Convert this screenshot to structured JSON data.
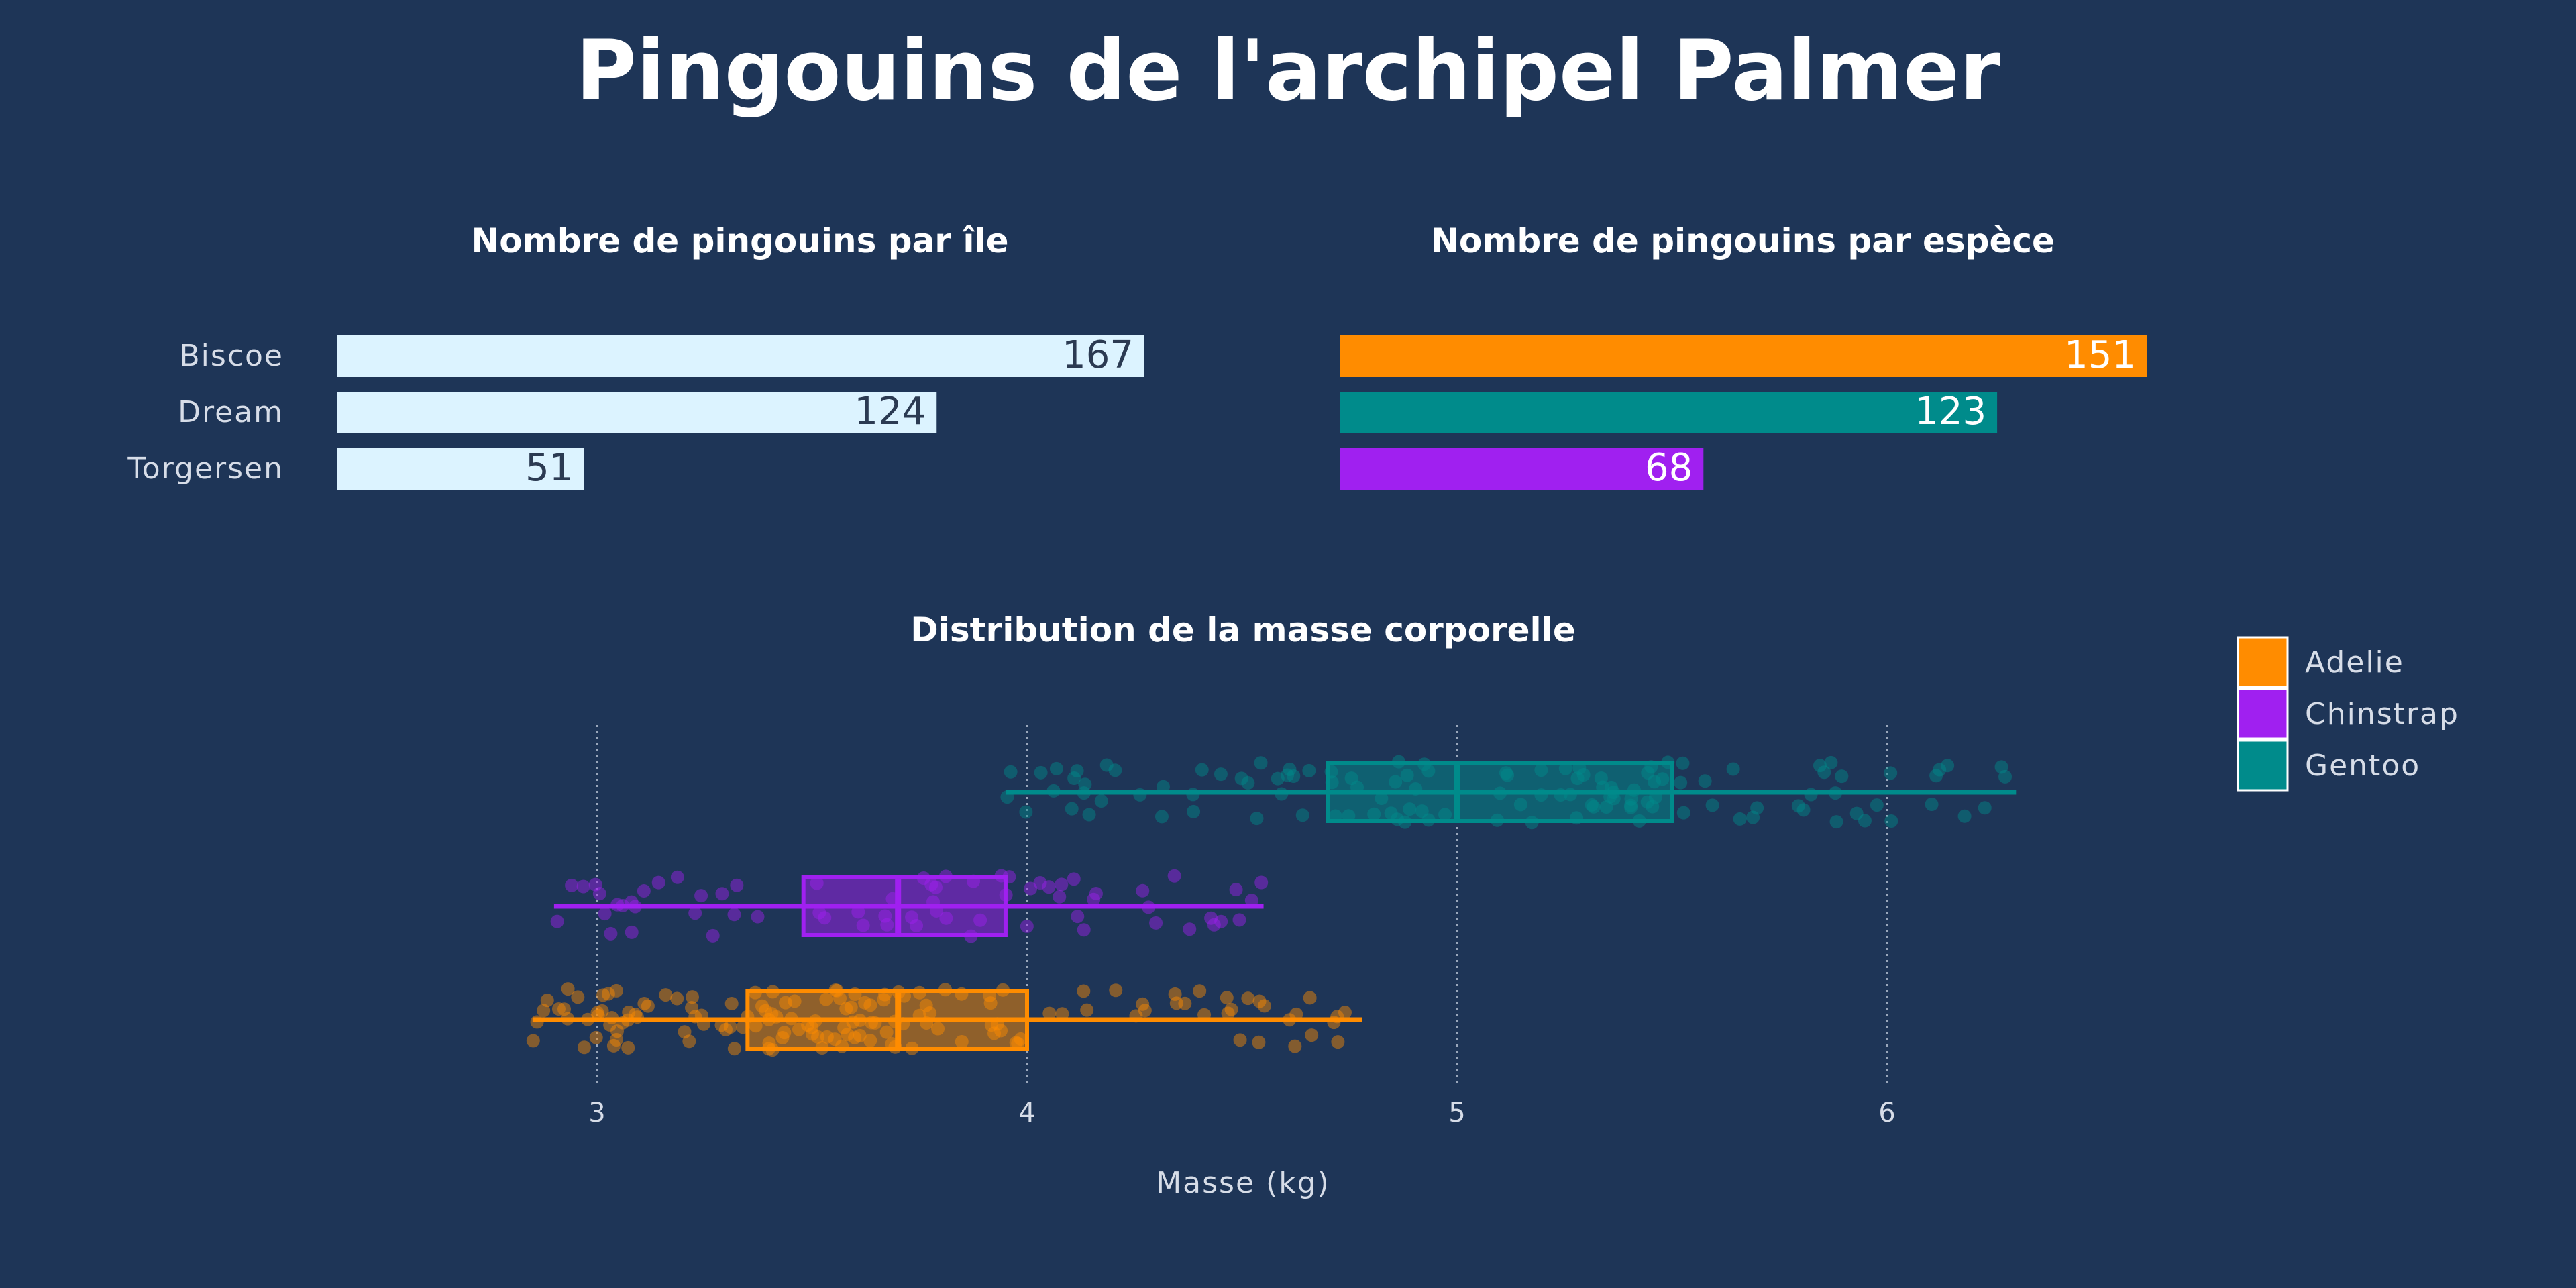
{
  "title": "Pingouins de l'archipel Palmer",
  "colors": {
    "background": "#1e3557",
    "island_bar": "#dcf3ff",
    "Adelie": "#ff8c00",
    "Chinstrap": "#a020f0",
    "Gentoo": "#008b8b",
    "axis_text": "#d7dde8"
  },
  "chart_data": [
    {
      "type": "bar",
      "orientation": "horizontal",
      "title": "Nombre de pingouins par île",
      "categories": [
        "Biscoe",
        "Dream",
        "Torgersen"
      ],
      "values": [
        167,
        124,
        51
      ],
      "xlim": [
        0,
        170
      ]
    },
    {
      "type": "bar",
      "orientation": "horizontal",
      "title": "Nombre de pingouins par espèce",
      "categories": [
        "Adelie",
        "Gentoo",
        "Chinstrap"
      ],
      "values": [
        151,
        123,
        68
      ],
      "xlim": [
        0,
        155
      ]
    },
    {
      "type": "boxplot",
      "orientation": "horizontal",
      "title": "Distribution de la masse corporelle",
      "xlabel": "Masse (kg)",
      "xlim": [
        2.5,
        6.5
      ],
      "xticks": [
        "3",
        "4",
        "5",
        "6"
      ],
      "grid": "vertical dotted",
      "legend": {
        "position": "right-top",
        "entries": [
          "Adelie",
          "Chinstrap",
          "Gentoo"
        ]
      },
      "series": [
        {
          "name": "Adelie",
          "whisker_low": 2.85,
          "q1": 3.35,
          "median": 3.7,
          "q3": 4.0,
          "whisker_high": 4.78
        },
        {
          "name": "Chinstrap",
          "whisker_low": 2.9,
          "q1": 3.48,
          "median": 3.7,
          "q3": 3.95,
          "whisker_high": 4.55
        },
        {
          "name": "Gentoo",
          "whisker_low": 3.95,
          "q1": 4.7,
          "median": 5.0,
          "q3": 5.5,
          "whisker_high": 6.3
        }
      ]
    }
  ]
}
